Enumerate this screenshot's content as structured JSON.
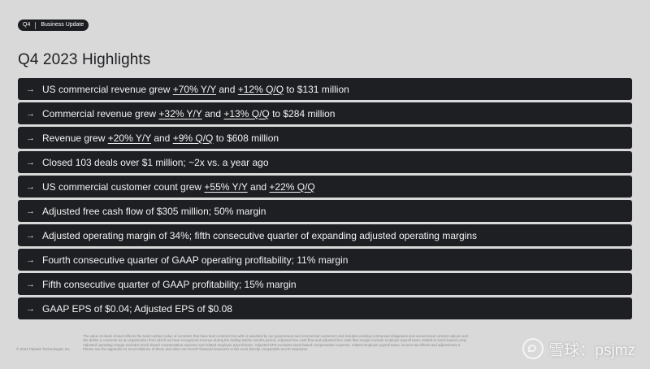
{
  "header": {
    "quarter_tag": "Q4",
    "section_tag": "Business Update"
  },
  "title": "Q4 2023 Highlights",
  "arrow_glyph": "→",
  "highlights": [
    [
      {
        "text": "US commercial revenue grew ",
        "underline": false
      },
      {
        "text": "+70% Y/Y",
        "underline": true
      },
      {
        "text": " and ",
        "underline": false
      },
      {
        "text": "+12% Q/Q",
        "underline": true
      },
      {
        "text": " to $131 million",
        "underline": false
      }
    ],
    [
      {
        "text": "Commercial revenue grew ",
        "underline": false
      },
      {
        "text": "+32% Y/Y",
        "underline": true
      },
      {
        "text": " and ",
        "underline": false
      },
      {
        "text": "+13% Q/Q",
        "underline": true
      },
      {
        "text": " to $284 million",
        "underline": false
      }
    ],
    [
      {
        "text": "Revenue grew ",
        "underline": false
      },
      {
        "text": "+20% Y/Y",
        "underline": true
      },
      {
        "text": " and ",
        "underline": false
      },
      {
        "text": "+9% Q/Q",
        "underline": true
      },
      {
        "text": " to $608 million",
        "underline": false
      }
    ],
    [
      {
        "text": "Closed 103 deals over $1 million; ~2x vs. a year ago",
        "underline": false
      }
    ],
    [
      {
        "text": "US commercial customer count grew ",
        "underline": false
      },
      {
        "text": "+55% Y/Y",
        "underline": true
      },
      {
        "text": " and ",
        "underline": false
      },
      {
        "text": "+22% Q/Q",
        "underline": true
      }
    ],
    [
      {
        "text": "Adjusted free cash flow of $305 million; 50% margin",
        "underline": false
      }
    ],
    [
      {
        "text": "Adjusted operating margin of 34%; fifth consecutive quarter of expanding adjusted operating margins",
        "underline": false
      }
    ],
    [
      {
        "text": "Fourth consecutive quarter of GAAP operating profitability; 11% margin",
        "underline": false
      }
    ],
    [
      {
        "text": "Fifth consecutive quarter of GAAP profitability; 15% margin",
        "underline": false
      }
    ],
    [
      {
        "text": "GAAP EPS of $0.04; Adjusted EPS of $0.08",
        "underline": false
      }
    ]
  ],
  "footer": {
    "copyright": "© 2024 Palantir Technologies Inc.",
    "footnotes": [
      "The value of deals closed reflects the total contract value of contracts that have been entered into with or awarded by our government and commercial customers and includes existing contractual obligations and unexercised contract options and",
      "We define a customer as an organization from which we have recognized revenue during the trailing twelve months period. Adjusted free cash flow and adjusted free cash flow margin exclude employer payroll taxes related to stock-based comp",
      "Adjusted operating margin excludes stock-based compensation expense and related employer payroll taxes. Adjusted EPS excludes stock-based compensation expense, related employer payroll taxes, income tax effects and adjustments a",
      "Please see the appendix for reconciliations of these and other non-GAAP financial measures to the most directly comparable GAAP measures."
    ]
  },
  "watermark": {
    "text": "雪球：psjmz"
  },
  "colors": {
    "background": "#d9d9d9",
    "row_background": "#1d1f23",
    "row_text": "#f2f2f2",
    "title_text": "#1d1f22"
  }
}
